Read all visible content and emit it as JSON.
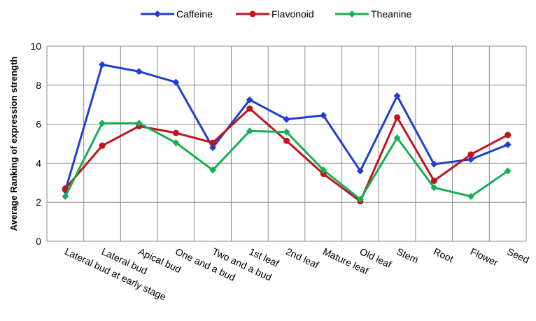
{
  "chart_data": {
    "type": "line",
    "title": "",
    "xlabel": "",
    "ylabel": "Average Ranking of expression strength",
    "ylim": [
      0,
      10
    ],
    "yticks": [
      0,
      2,
      4,
      6,
      8,
      10
    ],
    "grid": true,
    "legend_position": "top",
    "categories": [
      "Lateral bud at early stage",
      "Lateral bud",
      "Apical bud",
      "One and a bud",
      "Two and a bud",
      "1st leaf",
      "2nd leaf",
      "Mature leaf",
      "Old leaf",
      "Stem",
      "Root",
      "Flower",
      "Seed"
    ],
    "series": [
      {
        "name": "Caffeine",
        "color": "#1f3fd1",
        "marker": "diamond",
        "values": [
          2.6,
          9.05,
          8.7,
          8.15,
          4.8,
          7.25,
          6.25,
          6.45,
          3.6,
          7.45,
          3.95,
          4.2,
          4.95
        ]
      },
      {
        "name": "Flavonoid",
        "color": "#c0141e",
        "marker": "circle",
        "values": [
          2.7,
          4.9,
          5.9,
          5.55,
          5.05,
          6.8,
          5.15,
          3.45,
          2.05,
          6.35,
          3.1,
          4.45,
          5.45
        ]
      },
      {
        "name": "Theanine",
        "color": "#1aae54",
        "marker": "diamond",
        "values": [
          2.3,
          6.05,
          6.05,
          5.05,
          3.65,
          5.65,
          5.6,
          3.65,
          2.15,
          5.3,
          2.75,
          2.3,
          3.6
        ]
      }
    ]
  }
}
